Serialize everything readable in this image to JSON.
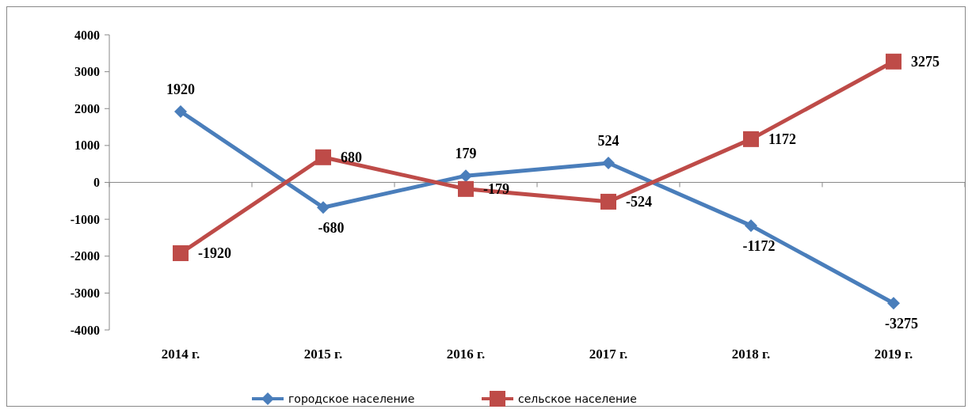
{
  "chart_data": {
    "type": "line",
    "categories": [
      "2014 г.",
      "2015 г.",
      "2016 г.",
      "2017 г.",
      "2018 г.",
      "2019 г."
    ],
    "series": [
      {
        "name": "городское население",
        "color": "#4a7ebb",
        "marker": "diamond",
        "values": [
          1920,
          -680,
          179,
          524,
          -1172,
          -3275
        ]
      },
      {
        "name": "сельское население",
        "color": "#be4b48",
        "marker": "square",
        "values": [
          -1920,
          680,
          -179,
          -524,
          1172,
          3275
        ]
      }
    ],
    "ylim": [
      -4000,
      4000
    ],
    "yticks": [
      -4000,
      -3000,
      -2000,
      -1000,
      0,
      1000,
      2000,
      3000,
      4000
    ],
    "legend": "bottom",
    "data_labels": true
  }
}
